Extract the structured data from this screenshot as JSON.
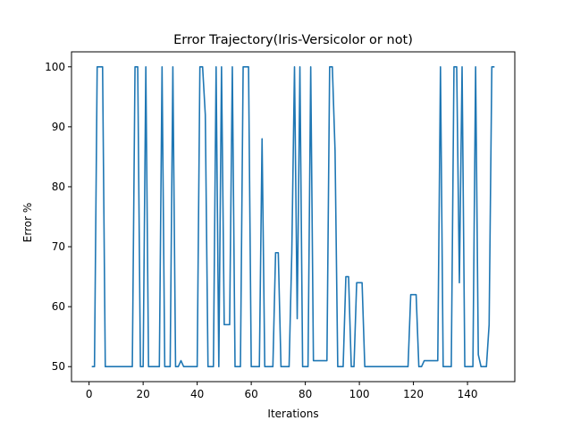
{
  "chart_data": {
    "type": "line",
    "title": "Error Trajectory(Iris-Versicolor or not)",
    "xlabel": "Iterations",
    "ylabel": "Error %",
    "xlim": [
      -6.5,
      157.5
    ],
    "ylim": [
      47.5,
      102.5
    ],
    "xticks": [
      0,
      20,
      40,
      60,
      80,
      100,
      120,
      140
    ],
    "yticks": [
      50,
      60,
      70,
      80,
      90,
      100
    ],
    "grid": false,
    "series_color": "#1f77b4",
    "series": [
      {
        "x": [
          1,
          2,
          3,
          4,
          5,
          6,
          7,
          8,
          9,
          10,
          11,
          12,
          13,
          14,
          15,
          16,
          17,
          18,
          19,
          20,
          21,
          22,
          23,
          24,
          25,
          26,
          27,
          28,
          29,
          30,
          31,
          32,
          33,
          34,
          35,
          36,
          37,
          38,
          39,
          40,
          41,
          42,
          43,
          44,
          45,
          46,
          47,
          48,
          49,
          50,
          51,
          52,
          53,
          54,
          55,
          56,
          57,
          58,
          59,
          60,
          61,
          62,
          63,
          64,
          65,
          66,
          67,
          68,
          69,
          70,
          71,
          72,
          73,
          74,
          75,
          76,
          77,
          78,
          79,
          80,
          81,
          82,
          83,
          84,
          85,
          86,
          87,
          88,
          89,
          90,
          91,
          92,
          93,
          94,
          95,
          96,
          97,
          98,
          99,
          100,
          101,
          102,
          103,
          104,
          105,
          106,
          107,
          108,
          109,
          110,
          111,
          112,
          113,
          114,
          115,
          116,
          117,
          118,
          119,
          120,
          121,
          122,
          123,
          124,
          125,
          126,
          127,
          128,
          129,
          130,
          131,
          132,
          133,
          134,
          135,
          136,
          137,
          138,
          139,
          140,
          141,
          142,
          143,
          144,
          145,
          146,
          147,
          148,
          149,
          150
        ],
        "values": [
          50,
          50,
          100,
          100,
          100,
          50,
          50,
          50,
          50,
          50,
          50,
          50,
          50,
          50,
          50,
          50,
          100,
          100,
          50,
          50,
          100,
          50,
          50,
          50,
          50,
          50,
          100,
          50,
          50,
          50,
          100,
          50,
          50,
          51,
          50,
          50,
          50,
          50,
          50,
          50,
          100,
          100,
          92,
          50,
          50,
          50,
          100,
          50,
          100,
          57,
          57,
          57,
          100,
          50,
          50,
          50,
          100,
          100,
          100,
          50,
          50,
          50,
          50,
          88,
          50,
          50,
          50,
          50,
          69,
          69,
          50,
          50,
          50,
          50,
          69,
          100,
          58,
          100,
          50,
          50,
          50,
          100,
          51,
          51,
          51,
          51,
          51,
          51,
          100,
          100,
          86,
          50,
          50,
          50,
          65,
          65,
          50,
          50,
          64,
          64,
          64,
          50,
          50,
          50,
          50,
          50,
          50,
          50,
          50,
          50,
          50,
          50,
          50,
          50,
          50,
          50,
          50,
          50,
          62,
          62,
          62,
          50,
          50,
          51,
          51,
          51,
          51,
          51,
          51,
          100,
          50,
          50,
          50,
          50,
          100,
          100,
          64,
          100,
          50,
          50,
          50,
          50,
          100,
          52,
          50,
          50,
          50,
          57,
          100,
          100
        ]
      }
    ]
  }
}
